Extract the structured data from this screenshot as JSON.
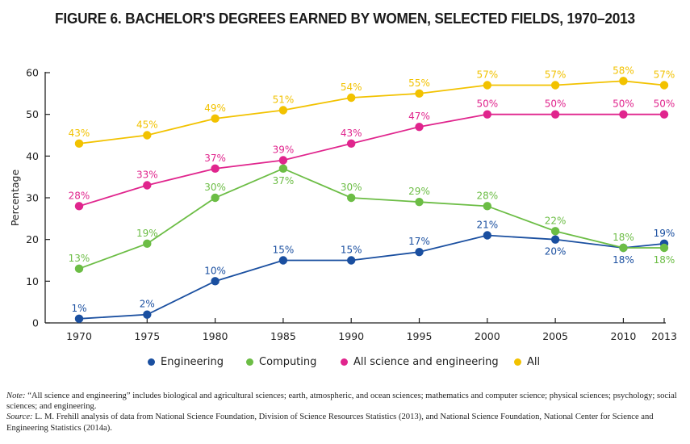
{
  "title": "FIGURE 6. BACHELOR'S DEGREES EARNED BY WOMEN, SELECTED FIELDS, 1970–2013",
  "notes": {
    "note_label": "Note:",
    "note_text": " “All science and engineering” includes biological and agricultural sciences; earth, atmospheric, and ocean sciences; mathematics and computer science; physical sciences; psychology; social sciences; and engineering.",
    "source_label": "Source:",
    "source_text": " L. M. Frehill analysis of data from National Science Foundation, Division of Science Resources Statistics (2013), and National Science Foundation, National Center for Science and Engineering Statistics (2014a)."
  },
  "chart_data": {
    "type": "line",
    "title": "FIGURE 6. BACHELOR'S DEGREES EARNED BY WOMEN, SELECTED FIELDS, 1970–2013",
    "xlabel": "",
    "ylabel": "Percentage",
    "x": [
      1970,
      1975,
      1980,
      1985,
      1990,
      1995,
      2000,
      2005,
      2010,
      2013
    ],
    "x_tick_labels": [
      "1970",
      "1975",
      "1980",
      "1985",
      "1990",
      "1995",
      "2000",
      "2005",
      "2010",
      "2013"
    ],
    "ylim": [
      0,
      60
    ],
    "y_ticks": [
      0,
      10,
      20,
      30,
      40,
      50,
      60
    ],
    "grid": false,
    "legend_position": "bottom",
    "series": [
      {
        "name": "Engineering",
        "color": "#1a4fa0",
        "values": [
          1,
          2,
          10,
          15,
          15,
          17,
          21,
          20,
          18,
          19
        ],
        "labels": [
          "1%",
          "2%",
          "10%",
          "15%",
          "15%",
          "17%",
          "21%",
          "20%",
          "18%",
          "19%"
        ],
        "label_side": [
          "above",
          "above",
          "above",
          "above",
          "above",
          "above",
          "above",
          "below",
          "below",
          "above"
        ]
      },
      {
        "name": "Computing",
        "color": "#6cbd45",
        "values": [
          13,
          19,
          30,
          37,
          30,
          29,
          28,
          22,
          18,
          18
        ],
        "labels": [
          "13%",
          "19%",
          "30%",
          "37%",
          "30%",
          "29%",
          "28%",
          "22%",
          "18%",
          "18%"
        ],
        "label_side": [
          "above",
          "above",
          "above",
          "below",
          "above",
          "above",
          "above",
          "above",
          "above",
          "below"
        ]
      },
      {
        "name": "All science and engineering",
        "color": "#e0258d",
        "values": [
          28,
          33,
          37,
          39,
          43,
          47,
          50,
          50,
          50,
          50
        ],
        "labels": [
          "28%",
          "33%",
          "37%",
          "39%",
          "43%",
          "47%",
          "50%",
          "50%",
          "50%",
          "50%"
        ],
        "label_side": [
          "above",
          "above",
          "above",
          "above",
          "above",
          "above",
          "above",
          "above",
          "above",
          "above"
        ]
      },
      {
        "name": "All",
        "color": "#f2c200",
        "values": [
          43,
          45,
          49,
          51,
          54,
          55,
          57,
          57,
          58,
          57
        ],
        "labels": [
          "43%",
          "45%",
          "49%",
          "51%",
          "54%",
          "55%",
          "57%",
          "57%",
          "58%",
          "57%"
        ],
        "label_side": [
          "above",
          "above",
          "above",
          "above",
          "above",
          "above",
          "above",
          "above",
          "above",
          "above"
        ]
      }
    ]
  }
}
